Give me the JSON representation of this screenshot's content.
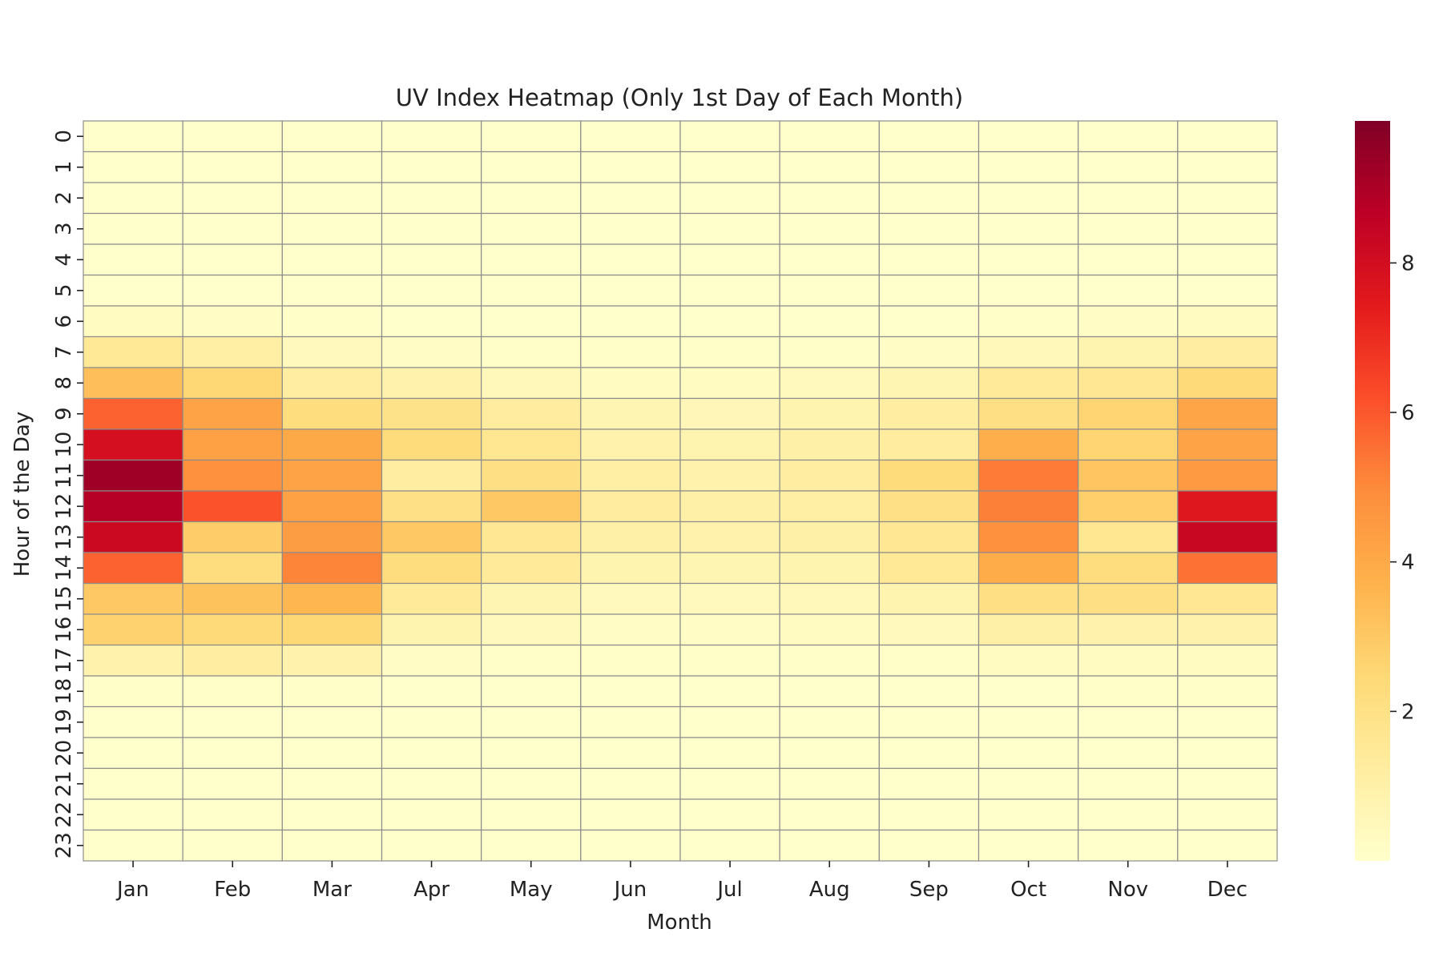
{
  "chart_data": {
    "type": "heatmap",
    "title": "UV Index Heatmap (Only 1st Day of Each Month)",
    "xlabel": "Month",
    "ylabel": "Hour of the Day",
    "x_categories": [
      "Jan",
      "Feb",
      "Mar",
      "Apr",
      "May",
      "Jun",
      "Jul",
      "Aug",
      "Sep",
      "Oct",
      "Nov",
      "Dec"
    ],
    "y_categories": [
      "0",
      "1",
      "2",
      "3",
      "4",
      "5",
      "6",
      "7",
      "8",
      "9",
      "10",
      "11",
      "12",
      "13",
      "14",
      "15",
      "16",
      "17",
      "18",
      "19",
      "20",
      "21",
      "22",
      "23"
    ],
    "values": [
      [
        0.0,
        0.0,
        0.0,
        0.0,
        0.0,
        0.0,
        0.0,
        0.0,
        0.0,
        0.0,
        0.0,
        0.0
      ],
      [
        0.0,
        0.0,
        0.0,
        0.0,
        0.0,
        0.0,
        0.0,
        0.0,
        0.0,
        0.0,
        0.0,
        0.0
      ],
      [
        0.0,
        0.0,
        0.0,
        0.0,
        0.0,
        0.0,
        0.0,
        0.0,
        0.0,
        0.0,
        0.0,
        0.0
      ],
      [
        0.0,
        0.0,
        0.0,
        0.0,
        0.0,
        0.0,
        0.0,
        0.0,
        0.0,
        0.0,
        0.0,
        0.0
      ],
      [
        0.0,
        0.0,
        0.0,
        0.0,
        0.0,
        0.0,
        0.0,
        0.0,
        0.0,
        0.0,
        0.0,
        0.0
      ],
      [
        0.0,
        0.0,
        0.0,
        0.0,
        0.0,
        0.0,
        0.0,
        0.0,
        0.0,
        0.0,
        0.0,
        0.0
      ],
      [
        0.3,
        0.2,
        0.1,
        0.0,
        0.0,
        0.0,
        0.0,
        0.0,
        0.0,
        0.1,
        0.2,
        0.3
      ],
      [
        1.5,
        1.1,
        0.4,
        0.2,
        0.1,
        0.1,
        0.1,
        0.1,
        0.2,
        0.5,
        0.8,
        1.2
      ],
      [
        3.3,
        2.5,
        1.2,
        0.9,
        0.5,
        0.3,
        0.3,
        0.4,
        0.7,
        1.4,
        1.6,
        2.4
      ],
      [
        5.8,
        4.2,
        2.2,
        1.9,
        1.3,
        0.7,
        0.6,
        0.8,
        1.2,
        2.1,
        2.6,
        4.1
      ],
      [
        7.9,
        4.3,
        4.0,
        2.3,
        1.7,
        0.9,
        0.8,
        1.0,
        1.3,
        3.8,
        2.6,
        4.2
      ],
      [
        9.3,
        4.8,
        4.2,
        1.2,
        2.1,
        1.1,
        0.9,
        1.2,
        2.3,
        5.3,
        3.1,
        4.5
      ],
      [
        8.8,
        6.1,
        4.3,
        2.0,
        3.0,
        1.3,
        1.0,
        1.1,
        2.0,
        5.2,
        2.8,
        7.6
      ],
      [
        8.2,
        2.9,
        4.4,
        3.0,
        1.6,
        1.0,
        0.9,
        1.0,
        1.6,
        4.8,
        1.7,
        8.3
      ],
      [
        5.8,
        2.2,
        5.1,
        2.2,
        1.4,
        0.8,
        0.7,
        0.8,
        1.5,
        3.9,
        2.2,
        5.5
      ],
      [
        3.0,
        3.2,
        3.6,
        1.4,
        0.7,
        0.4,
        0.4,
        0.5,
        0.8,
        2.1,
        2.1,
        1.6
      ],
      [
        2.7,
        2.4,
        2.5,
        0.8,
        0.4,
        0.2,
        0.2,
        0.3,
        0.4,
        1.0,
        0.9,
        0.9
      ],
      [
        0.9,
        1.2,
        0.9,
        0.2,
        0.1,
        0.1,
        0.1,
        0.1,
        0.1,
        0.3,
        0.3,
        0.3
      ],
      [
        0.1,
        0.1,
        0.1,
        0.0,
        0.0,
        0.0,
        0.0,
        0.0,
        0.0,
        0.0,
        0.1,
        0.1
      ],
      [
        0.0,
        0.0,
        0.0,
        0.0,
        0.0,
        0.0,
        0.0,
        0.0,
        0.0,
        0.0,
        0.0,
        0.0
      ],
      [
        0.0,
        0.0,
        0.0,
        0.0,
        0.0,
        0.0,
        0.0,
        0.0,
        0.0,
        0.0,
        0.0,
        0.0
      ],
      [
        0.0,
        0.0,
        0.0,
        0.0,
        0.0,
        0.0,
        0.0,
        0.0,
        0.0,
        0.0,
        0.0,
        0.0
      ],
      [
        0.0,
        0.0,
        0.0,
        0.0,
        0.0,
        0.0,
        0.0,
        0.0,
        0.0,
        0.0,
        0.0,
        0.0
      ],
      [
        0.0,
        0.0,
        0.0,
        0.0,
        0.0,
        0.0,
        0.0,
        0.0,
        0.0,
        0.0,
        0.0,
        0.0
      ]
    ],
    "colormap": "YlOrRd",
    "colormap_stops": [
      "#ffffcc",
      "#ffeda0",
      "#fed976",
      "#feb24c",
      "#fd8d3c",
      "#fc4e2a",
      "#e31a1c",
      "#bd0026",
      "#800026"
    ],
    "vmin": 0,
    "vmax": 9.9,
    "colorbar_ticks": [
      "2",
      "4",
      "6",
      "8"
    ],
    "grid_line_color": "#8c8c8c"
  }
}
